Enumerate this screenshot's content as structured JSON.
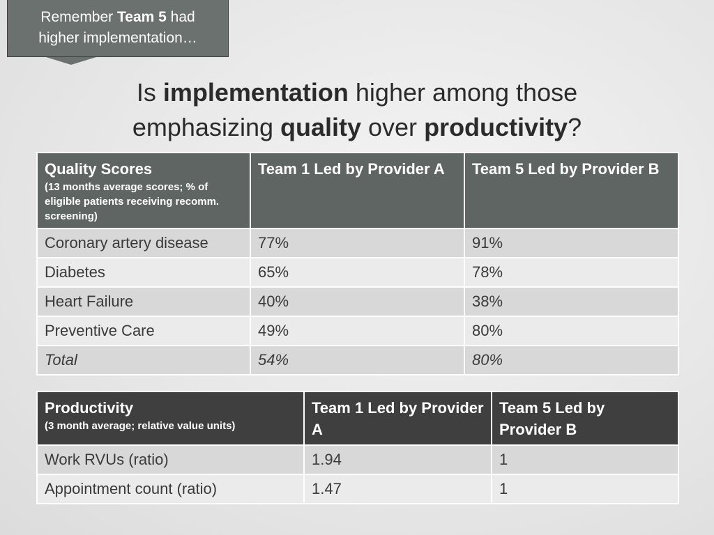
{
  "callout": {
    "parts": [
      "Remember ",
      "Team 5",
      " had",
      "higher implementation…"
    ]
  },
  "title": {
    "line1": [
      "Is ",
      "implementation",
      " higher among those"
    ],
    "line2": [
      "emphasizing ",
      "quality",
      " over ",
      "productivity",
      "?"
    ]
  },
  "quality_table": {
    "header": [
      {
        "title": "Quality Scores",
        "subtitle": "(13 months average scores; % of eligible patients receiving recomm. screening)"
      },
      {
        "title": "Team 1 Led by Provider A"
      },
      {
        "title": "Team 5 Led by Provider B"
      }
    ],
    "rows": [
      [
        "Coronary artery disease",
        "77%",
        "91%"
      ],
      [
        "Diabetes",
        "65%",
        "78%"
      ],
      [
        "Heart Failure",
        "40%",
        "38%"
      ],
      [
        "Preventive Care",
        "49%",
        "80%"
      ],
      [
        "Total",
        "54%",
        "80%"
      ]
    ]
  },
  "productivity_table": {
    "header": [
      {
        "title": "Productivity",
        "subtitle": "(3 month average; relative value units)"
      },
      {
        "title": "Team 1 Led by Provider A"
      },
      {
        "title": "Team 5 Led by Provider B"
      }
    ],
    "rows": [
      [
        "Work RVUs (ratio)",
        "1.94",
        "1"
      ],
      [
        "Appointment count (ratio)",
        "1.47",
        "1"
      ]
    ]
  }
}
